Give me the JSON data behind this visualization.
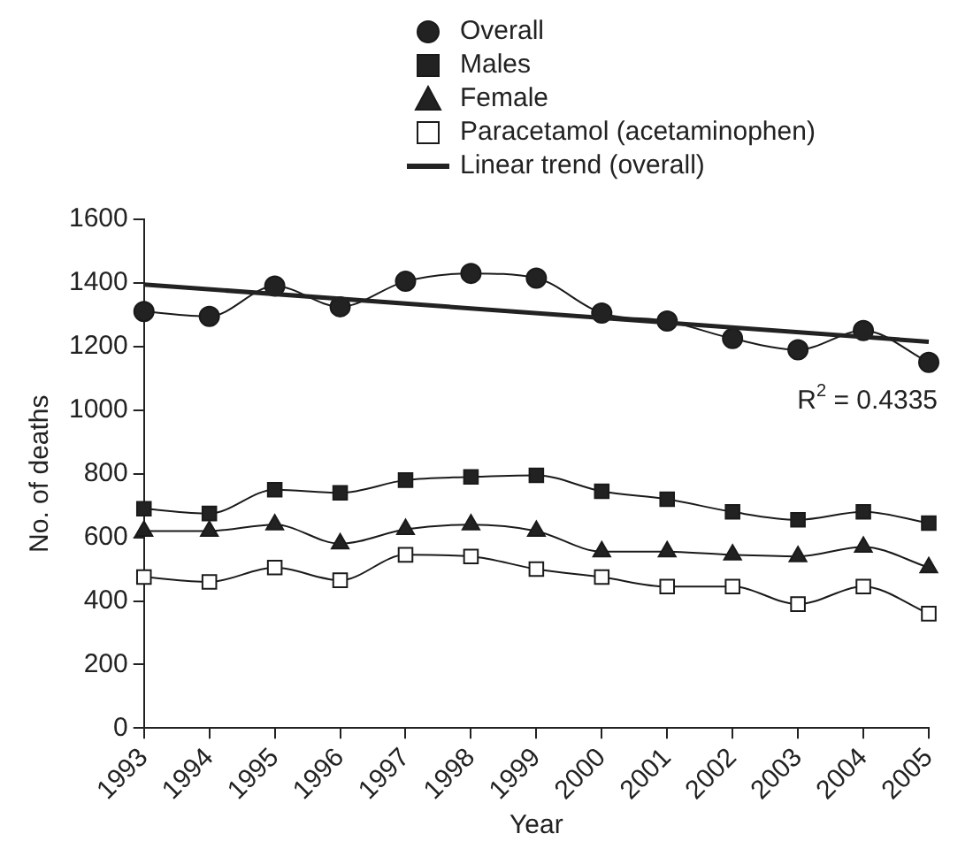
{
  "chart_data": {
    "type": "line",
    "xlabel": "Year",
    "ylabel": "No. of deaths",
    "categories": [
      "1993",
      "1994",
      "1995",
      "1996",
      "1997",
      "1998",
      "1999",
      "2000",
      "2001",
      "2002",
      "2003",
      "2004",
      "2005"
    ],
    "series": [
      {
        "name": "Overall",
        "color": "#222222",
        "marker": "circle",
        "values": [
          1310,
          1295,
          1390,
          1325,
          1405,
          1430,
          1415,
          1305,
          1280,
          1225,
          1190,
          1250,
          1150
        ]
      },
      {
        "name": "Males",
        "color": "#222222",
        "marker": "square",
        "values": [
          690,
          675,
          750,
          740,
          780,
          790,
          795,
          745,
          720,
          680,
          655,
          680,
          645
        ]
      },
      {
        "name": "Female",
        "color": "#222222",
        "marker": "triangle",
        "values": [
          620,
          620,
          640,
          580,
          625,
          640,
          620,
          555,
          555,
          545,
          540,
          570,
          505
        ]
      },
      {
        "name": "Paracetamol (acetaminophen)",
        "color": "#ffffff",
        "marker": "square",
        "values": [
          475,
          460,
          505,
          465,
          545,
          540,
          500,
          475,
          445,
          445,
          390,
          445,
          360
        ]
      },
      {
        "name": "Linear trend (overall)",
        "color": "#222222",
        "marker": "none",
        "values": [
          1395,
          null,
          null,
          null,
          null,
          null,
          null,
          null,
          null,
          null,
          null,
          null,
          1215
        ]
      }
    ],
    "ylim": [
      0,
      1600
    ],
    "yticks": [
      0,
      200,
      400,
      600,
      800,
      1000,
      1200,
      1400,
      1600
    ],
    "grid": false,
    "legend": "top",
    "annotations": [
      "R$^{2}$ = 0.4335"
    ]
  }
}
